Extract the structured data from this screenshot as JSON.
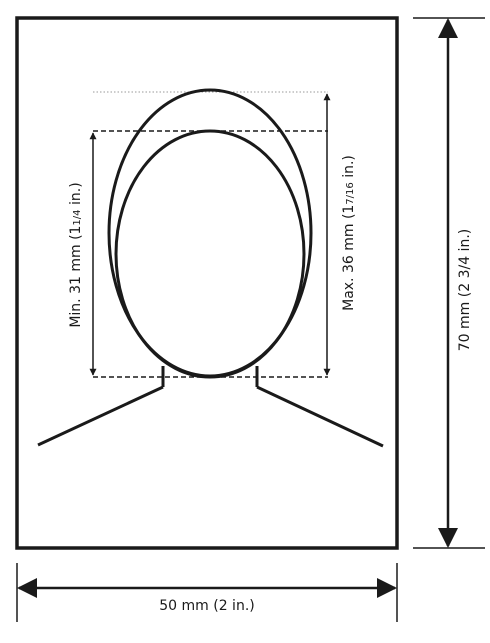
{
  "dimensions": {
    "width_label": "50 mm (2 in.)",
    "height_label": "70 mm (2 3/4 in.)",
    "min_head": {
      "prefix": "Min. 31 mm (1",
      "fraction": "1/4",
      "suffix": " in.)"
    },
    "max_head": {
      "prefix": "Max. 36 mm (1",
      "fraction": "7/16",
      "suffix": " in.)"
    }
  },
  "colors": {
    "stroke": "#1a1a1a",
    "guide": "#9a9a9a",
    "background": "#ffffff"
  }
}
